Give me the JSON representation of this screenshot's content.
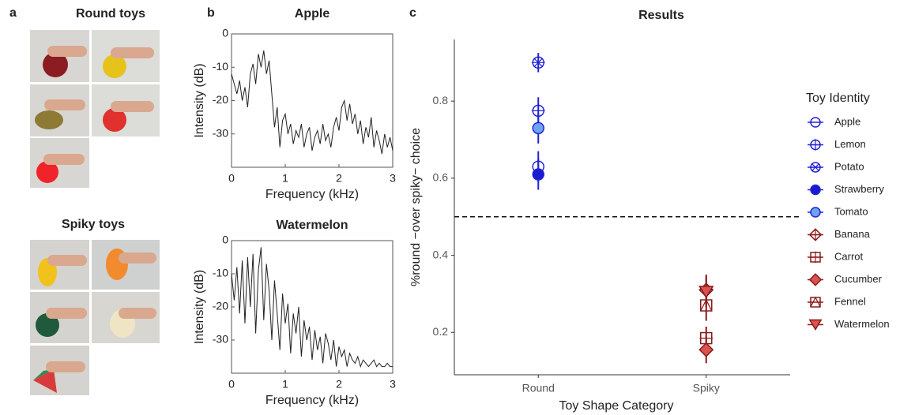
{
  "panel_labels": [
    "a",
    "b",
    "c"
  ],
  "photos": {
    "round_title": "Round toys",
    "spiky_title": "Spiky toys"
  },
  "chart_data": [
    {
      "type": "line",
      "title": "Apple",
      "xlabel": "Frequency (kHz)",
      "ylabel": "Intensity (dB)",
      "color": "#222222",
      "x": [
        0,
        0.05,
        0.1,
        0.15,
        0.2,
        0.25,
        0.3,
        0.35,
        0.4,
        0.45,
        0.5,
        0.55,
        0.6,
        0.65,
        0.7,
        0.75,
        0.8,
        0.85,
        0.9,
        0.95,
        1,
        1.05,
        1.1,
        1.15,
        1.2,
        1.25,
        1.3,
        1.35,
        1.4,
        1.45,
        1.5,
        1.55,
        1.6,
        1.65,
        1.7,
        1.75,
        1.8,
        1.85,
        1.9,
        1.95,
        2,
        2.05,
        2.1,
        2.15,
        2.2,
        2.25,
        2.3,
        2.35,
        2.4,
        2.45,
        2.5,
        2.55,
        2.6,
        2.65,
        2.7,
        2.75,
        2.8,
        2.85,
        2.9,
        2.95,
        3
      ],
      "values": [
        -12,
        -15,
        -18,
        -14,
        -20,
        -16,
        -22,
        -12,
        -9,
        -15,
        -6,
        -10,
        -5,
        -12,
        -8,
        -18,
        -28,
        -22,
        -34,
        -26,
        -24,
        -30,
        -27,
        -33,
        -29,
        -31,
        -27,
        -34,
        -30,
        -28,
        -35,
        -31,
        -29,
        -33,
        -27,
        -32,
        -30,
        -34,
        -28,
        -25,
        -29,
        -22,
        -20,
        -26,
        -21,
        -27,
        -24,
        -30,
        -26,
        -33,
        -28,
        -31,
        -25,
        -34,
        -29,
        -32,
        -36,
        -30,
        -34,
        -31,
        -35
      ],
      "xlim": [
        0,
        3
      ],
      "ylim": [
        -40,
        0
      ],
      "xticks": [
        0,
        1,
        2,
        3
      ],
      "yticks": [
        0,
        -10,
        -20,
        -30
      ]
    },
    {
      "type": "line",
      "title": "Watermelon",
      "xlabel": "Frequency (kHz)",
      "ylabel": "Intensity (dB)",
      "color": "#222222",
      "x": [
        0,
        0.05,
        0.1,
        0.15,
        0.2,
        0.25,
        0.3,
        0.35,
        0.4,
        0.45,
        0.5,
        0.55,
        0.6,
        0.65,
        0.7,
        0.75,
        0.8,
        0.85,
        0.9,
        0.95,
        1,
        1.05,
        1.1,
        1.15,
        1.2,
        1.25,
        1.3,
        1.35,
        1.4,
        1.45,
        1.5,
        1.55,
        1.6,
        1.65,
        1.7,
        1.75,
        1.8,
        1.85,
        1.9,
        1.95,
        2,
        2.05,
        2.1,
        2.15,
        2.2,
        2.25,
        2.3,
        2.35,
        2.4,
        2.45,
        2.5,
        2.55,
        2.6,
        2.65,
        2.7,
        2.75,
        2.8,
        2.85,
        2.9,
        2.95,
        3
      ],
      "values": [
        -10,
        -18,
        -8,
        -22,
        -6,
        -25,
        -5,
        -20,
        -4,
        -28,
        -9,
        -2,
        -24,
        -7,
        -15,
        -30,
        -12,
        -22,
        -33,
        -16,
        -25,
        -19,
        -34,
        -22,
        -28,
        -20,
        -35,
        -24,
        -30,
        -26,
        -36,
        -27,
        -33,
        -29,
        -37,
        -28,
        -31,
        -36,
        -30,
        -38,
        -32,
        -35,
        -33,
        -38,
        -34,
        -36,
        -37,
        -35,
        -38,
        -36,
        -37,
        -38,
        -37,
        -36,
        -38,
        -37,
        -38,
        -38,
        -37,
        -38,
        -38
      ],
      "xlim": [
        0,
        3
      ],
      "ylim": [
        -40,
        0
      ],
      "xticks": [
        0,
        1,
        2,
        3
      ],
      "yticks": [
        0,
        -10,
        -20,
        -30
      ]
    },
    {
      "type": "errorbar",
      "title": "Results",
      "xlabel": "Toy Shape Category",
      "ylabel": "%round −over spiky− choice",
      "categories": [
        "Round",
        "Spiky"
      ],
      "ylim": [
        0.09,
        0.96
      ],
      "yticks": [
        0.2,
        0.4,
        0.6,
        0.8
      ],
      "reference_line": 0.5,
      "legend_title": "Toy Identity",
      "legend": "right",
      "series": [
        {
          "name": "Apple",
          "color": "#2323d6",
          "fill": "none",
          "marker": "circle",
          "inner": "none",
          "values": [
            0.63,
            null
          ],
          "errors": [
            0.04,
            null
          ]
        },
        {
          "name": "Lemon",
          "color": "#2323d6",
          "fill": "none",
          "marker": "circle",
          "inner": "plus",
          "values": [
            0.775,
            null
          ],
          "errors": [
            0.035,
            null
          ]
        },
        {
          "name": "Potato",
          "color": "#2323d6",
          "fill": "none",
          "marker": "circle",
          "inner": "x",
          "values": [
            0.9,
            null
          ],
          "errors": [
            0.025,
            null
          ]
        },
        {
          "name": "Strawberry",
          "color": "#2323d6",
          "fill": "#1a1ad0",
          "marker": "circle",
          "inner": "none",
          "values": [
            0.61,
            null
          ],
          "errors": [
            0.04,
            null
          ]
        },
        {
          "name": "Tomato",
          "color": "#2323d6",
          "fill": "#6fa3f0",
          "marker": "circle",
          "inner": "none",
          "values": [
            0.73,
            null
          ],
          "errors": [
            0.04,
            null
          ]
        },
        {
          "name": "Banana",
          "color": "#8b1a1a",
          "fill": "none",
          "marker": "diamond",
          "inner": "plus",
          "values": [
            null,
            0.31
          ],
          "errors": [
            null,
            0.04
          ]
        },
        {
          "name": "Carrot",
          "color": "#8b1a1a",
          "fill": "none",
          "marker": "square",
          "inner": "plus",
          "values": [
            null,
            0.185
          ],
          "errors": [
            null,
            0.03
          ]
        },
        {
          "name": "Cucumber",
          "color": "#8b1a1a",
          "fill": "#d9534f",
          "marker": "diamond",
          "inner": "none",
          "values": [
            null,
            0.155
          ],
          "errors": [
            null,
            0.035
          ]
        },
        {
          "name": "Fennel",
          "color": "#8b1a1a",
          "fill": "none",
          "marker": "square",
          "inner": "triangle",
          "values": [
            null,
            0.27
          ],
          "errors": [
            null,
            0.04
          ]
        },
        {
          "name": "Watermelon",
          "color": "#8b1a1a",
          "fill": "#d9534f",
          "marker": "triangle-down",
          "inner": "none",
          "values": [
            null,
            0.305
          ],
          "errors": [
            null,
            0.04
          ]
        }
      ]
    }
  ]
}
